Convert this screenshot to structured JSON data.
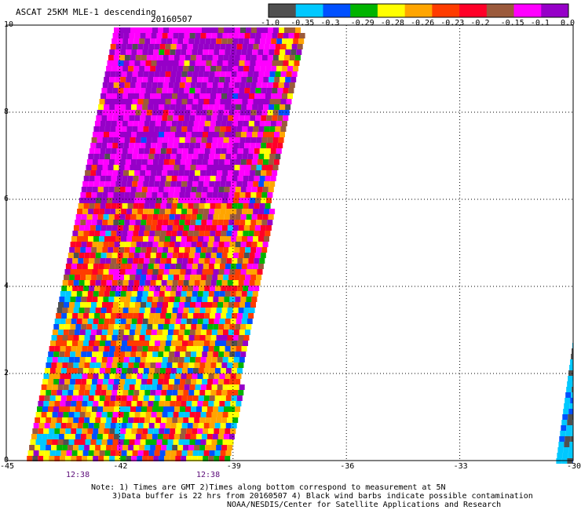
{
  "title": "ASCAT 25KM MLE-1 descending",
  "date": "20160507",
  "colorbar": {
    "labels": [
      "-1.0",
      "-0.35",
      "-0.3",
      "-0.29",
      "-0.28",
      "-0.26",
      "-0.23",
      "-0.2",
      "-0.15",
      "-0.1",
      "0.0"
    ],
    "colors": [
      "#505050",
      "#00c8ff",
      "#0050ff",
      "#00b400",
      "#ffff00",
      "#ffa500",
      "#ff3c00",
      "#ff0028",
      "#9b5a3c",
      "#ff00ff",
      "#9600c8"
    ]
  },
  "axes": {
    "y_ticks": [
      "0",
      "2",
      "4",
      "6",
      "8",
      "10"
    ],
    "x_ticks": [
      "-45",
      "-42",
      "-39",
      "-36",
      "-33",
      "-30"
    ],
    "xlim": [
      -45,
      -30
    ],
    "ylim": [
      0,
      10
    ]
  },
  "times": [
    "12:38",
    "12:38"
  ],
  "notes": [
    "Note: 1) Times are GMT 2)Times along bottom correspond to measurement at 5N",
    "3)Data buffer is 22 hrs from 20160507 4) Black wind barbs indicate possible contamination",
    "NOAA/NESDIS/Center for Satellite Applications and Research"
  ],
  "legend_icons": {
    "colorbar": "color-scale-bar"
  }
}
